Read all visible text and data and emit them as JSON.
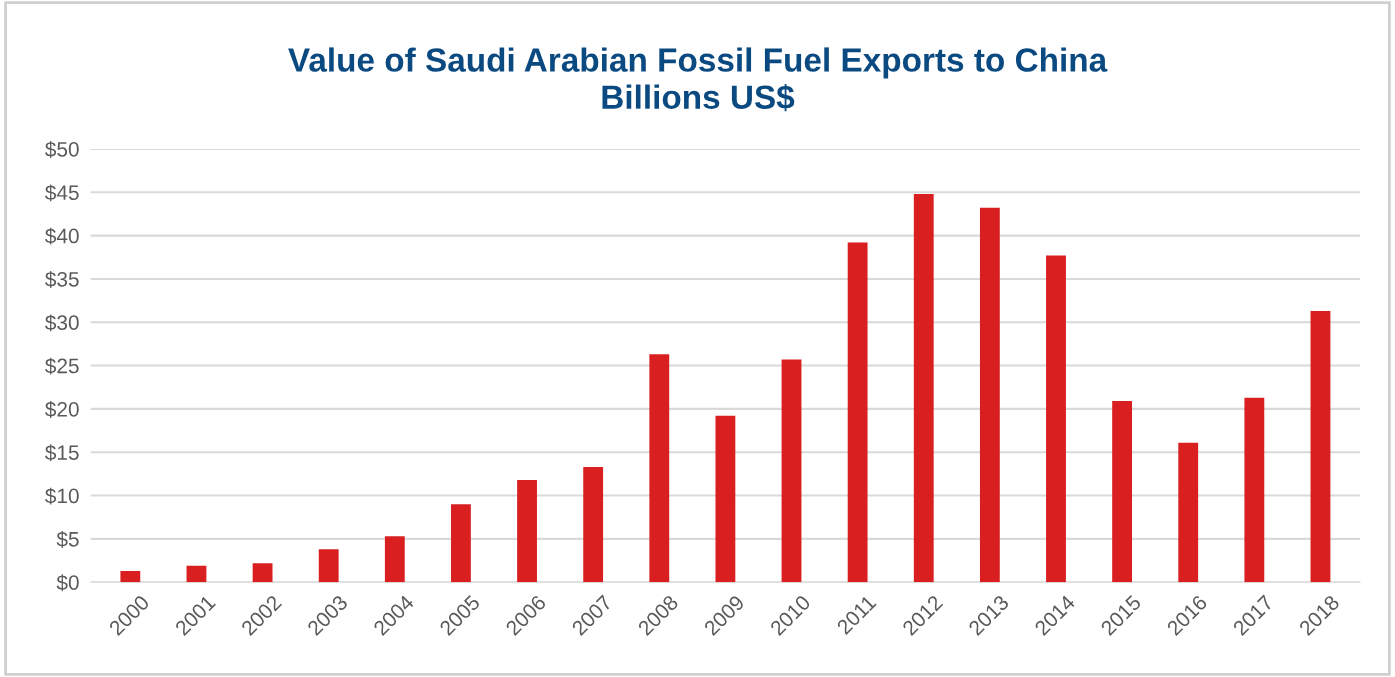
{
  "chart_data": {
    "type": "bar",
    "title": "Value of Saudi Arabian Fossil Fuel Exports to China\nBillions US$",
    "categories": [
      "2000",
      "2001",
      "2002",
      "2003",
      "2004",
      "2005",
      "2006",
      "2007",
      "2008",
      "2009",
      "2010",
      "2011",
      "2012",
      "2013",
      "2014",
      "2015",
      "2016",
      "2017",
      "2018"
    ],
    "values": [
      1.3,
      1.9,
      2.2,
      3.8,
      5.3,
      9.0,
      11.8,
      13.3,
      26.3,
      19.2,
      25.7,
      39.2,
      44.8,
      43.2,
      37.7,
      20.9,
      16.1,
      21.3,
      31.3
    ],
    "color": "#d91f1f",
    "ylim": [
      0,
      50
    ],
    "yticks": [
      {
        "value": 0,
        "label": "$0"
      },
      {
        "value": 5,
        "label": "$5"
      },
      {
        "value": 10,
        "label": "$10"
      },
      {
        "value": 15,
        "label": "$15"
      },
      {
        "value": 20,
        "label": "$20"
      },
      {
        "value": 25,
        "label": "$25"
      },
      {
        "value": 30,
        "label": "$30"
      },
      {
        "value": 35,
        "label": "$35"
      },
      {
        "value": 40,
        "label": "$40"
      },
      {
        "value": 45,
        "label": "$45"
      },
      {
        "value": 50,
        "label": "$50"
      }
    ],
    "grid": "y",
    "legend": false
  }
}
